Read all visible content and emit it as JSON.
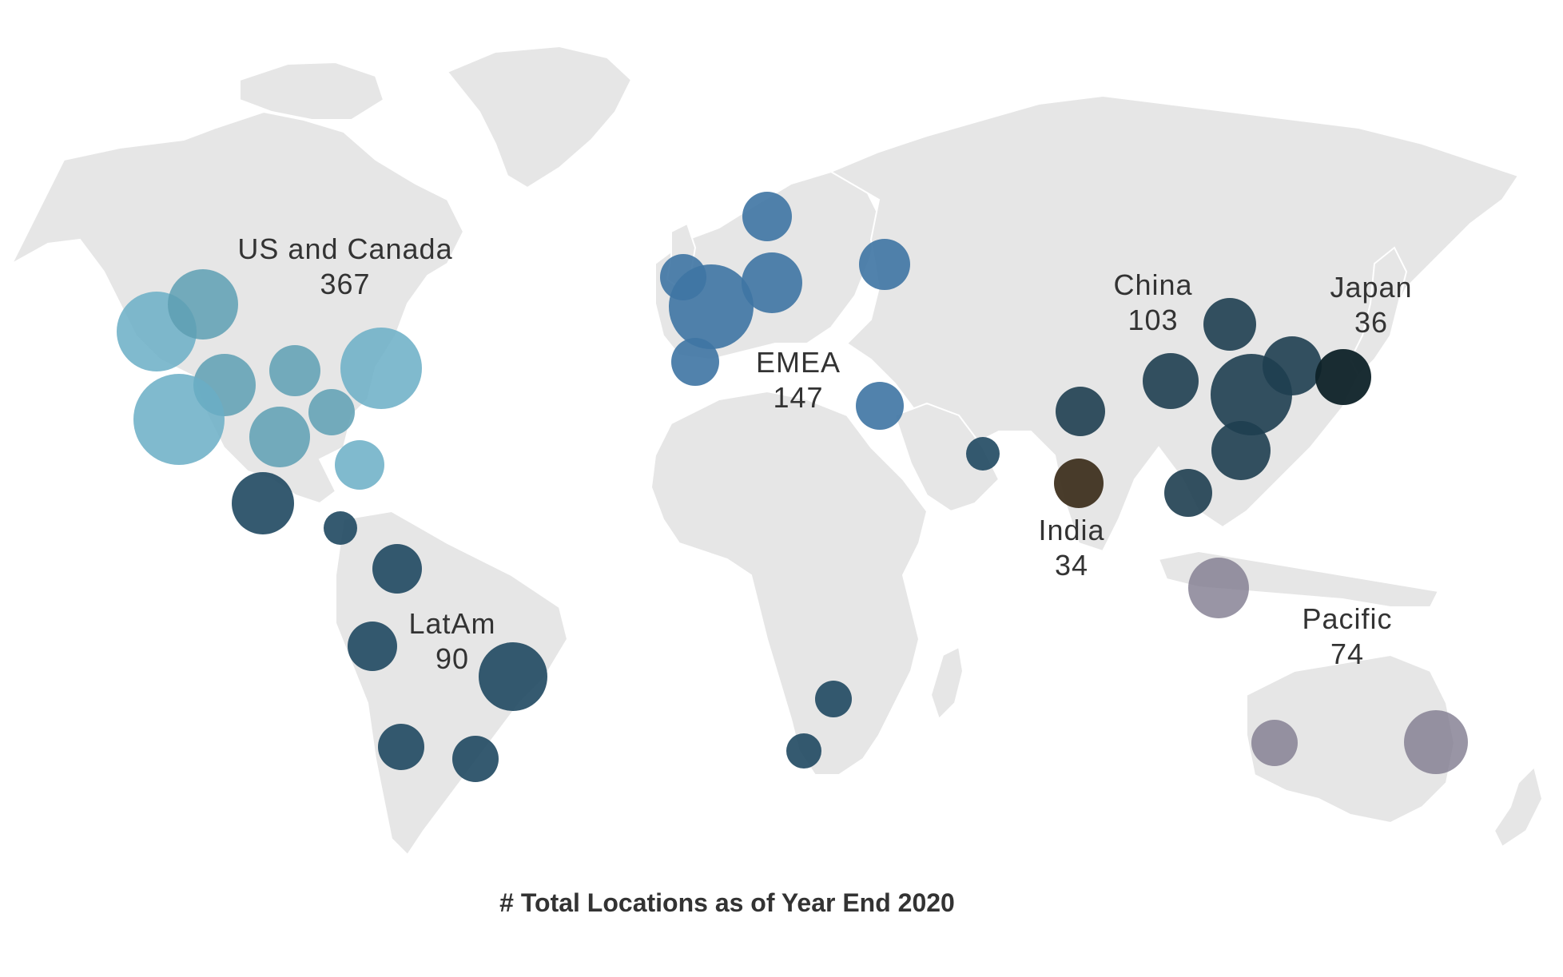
{
  "caption": "# Total Locations as of Year End 2020",
  "regions": [
    {
      "id": "us-canada",
      "name": "US and Canada",
      "count": "367",
      "color": "#6aaec6"
    },
    {
      "id": "latam",
      "name": "LatAm",
      "count": "90",
      "color": "#1f4860"
    },
    {
      "id": "emea",
      "name": "EMEA",
      "count": "147",
      "color": "#3e74a3"
    },
    {
      "id": "china",
      "name": "China",
      "count": "103",
      "color": "#1e3e50"
    },
    {
      "id": "japan",
      "name": "Japan",
      "count": "36",
      "color": "#0e2228"
    },
    {
      "id": "india",
      "name": "India",
      "count": "34",
      "color": "#3f3220"
    },
    {
      "id": "pacific",
      "name": "Pacific",
      "count": "74",
      "color": "#7f7a8e"
    }
  ]
}
